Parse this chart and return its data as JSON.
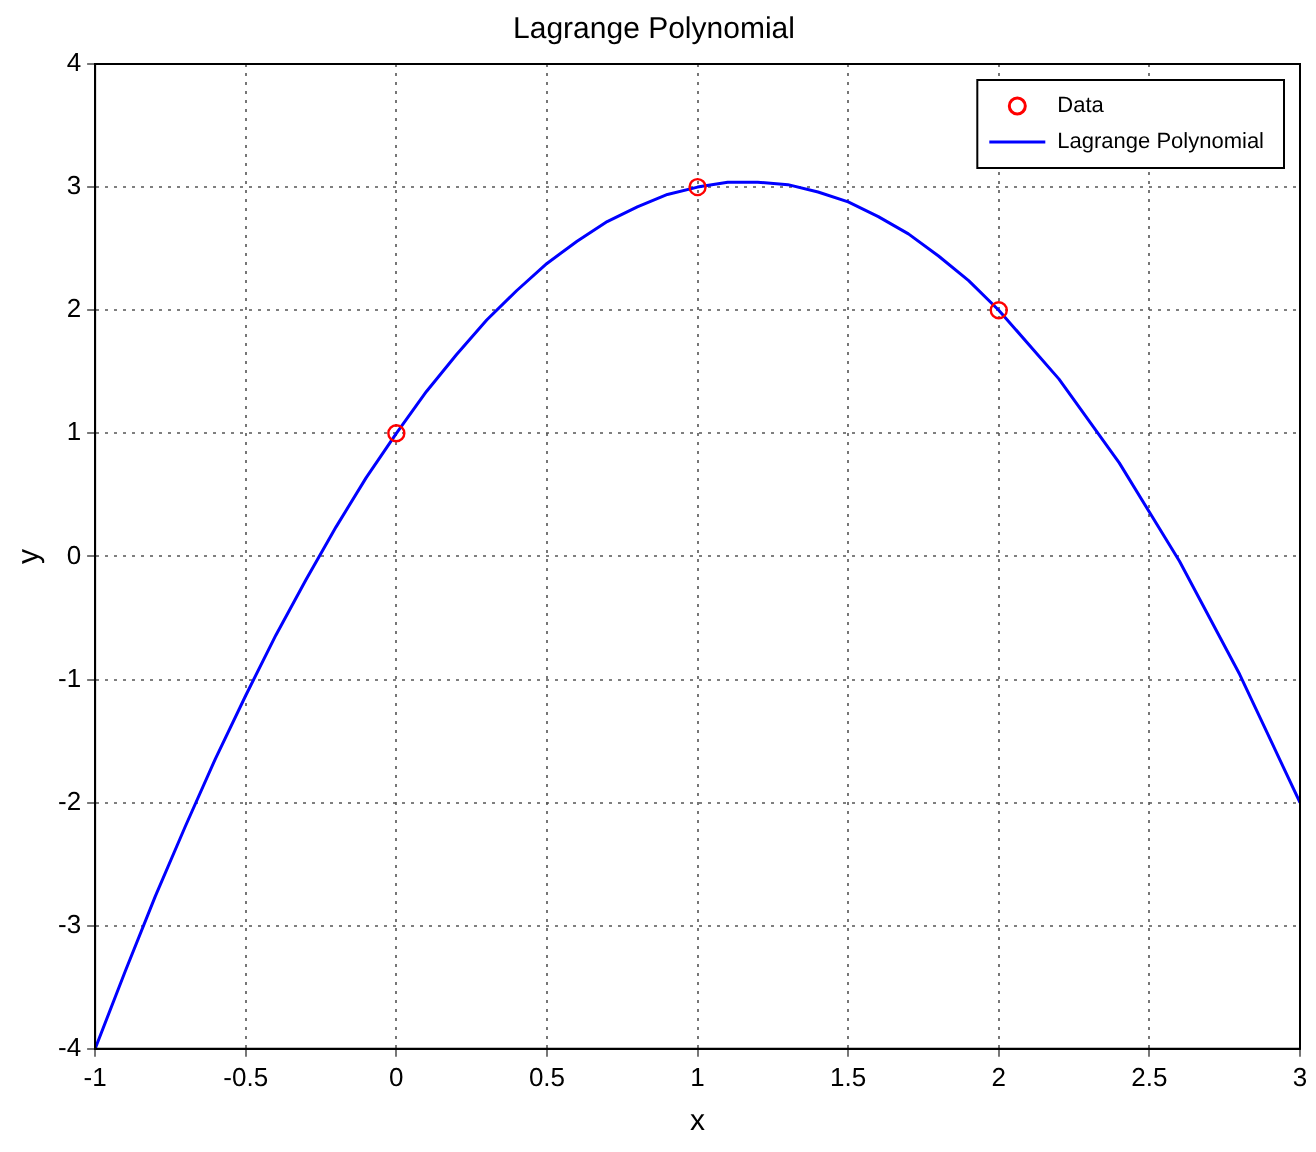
{
  "chart_data": {
    "type": "line",
    "title": "Lagrange Polynomial",
    "xlabel": "x",
    "ylabel": "y",
    "xlim": [
      -1,
      3
    ],
    "xticks": [
      -1,
      -0.5,
      0,
      0.5,
      1,
      1.5,
      2,
      2.5,
      3
    ],
    "ylim": [
      -4,
      4
    ],
    "yticks": [
      -4,
      -3,
      -2,
      -1,
      0,
      1,
      2,
      3,
      4
    ],
    "grid": true,
    "legend": "top right",
    "series": [
      {
        "name": "Data",
        "type": "scatter",
        "color": "#ff0000",
        "marker": "circle",
        "x": [
          0,
          1,
          2
        ],
        "values": [
          1,
          3,
          2
        ]
      },
      {
        "name": "Lagrange Polynomial",
        "color": "#0000ff",
        "marker": "none",
        "line_style": "solid",
        "x": [
          -1,
          -0.9,
          -0.8,
          -0.7,
          -0.6,
          -0.5,
          -0.4,
          -0.3,
          -0.2,
          -0.1,
          0,
          0.1,
          0.2,
          0.3,
          0.4,
          0.5,
          0.6,
          0.7,
          0.8,
          0.9,
          1,
          1.1,
          1.2,
          1.3,
          1.4,
          1.5,
          1.6,
          1.7,
          1.8,
          1.9,
          2,
          2.2,
          2.4,
          2.6,
          2.8,
          3
        ],
        "values": [
          -4,
          -3.37,
          -2.76,
          -2.19,
          -1.64,
          -1.13,
          -0.64,
          -0.19,
          0.24,
          0.64,
          1,
          1.34,
          1.64,
          1.92,
          2.16,
          2.38,
          2.56,
          2.72,
          2.84,
          2.94,
          3,
          3.04,
          3.04,
          3.02,
          2.96,
          2.88,
          2.76,
          2.62,
          2.44,
          2.24,
          2,
          1.44,
          0.76,
          -0.04,
          -0.96,
          -2
        ]
      }
    ]
  }
}
